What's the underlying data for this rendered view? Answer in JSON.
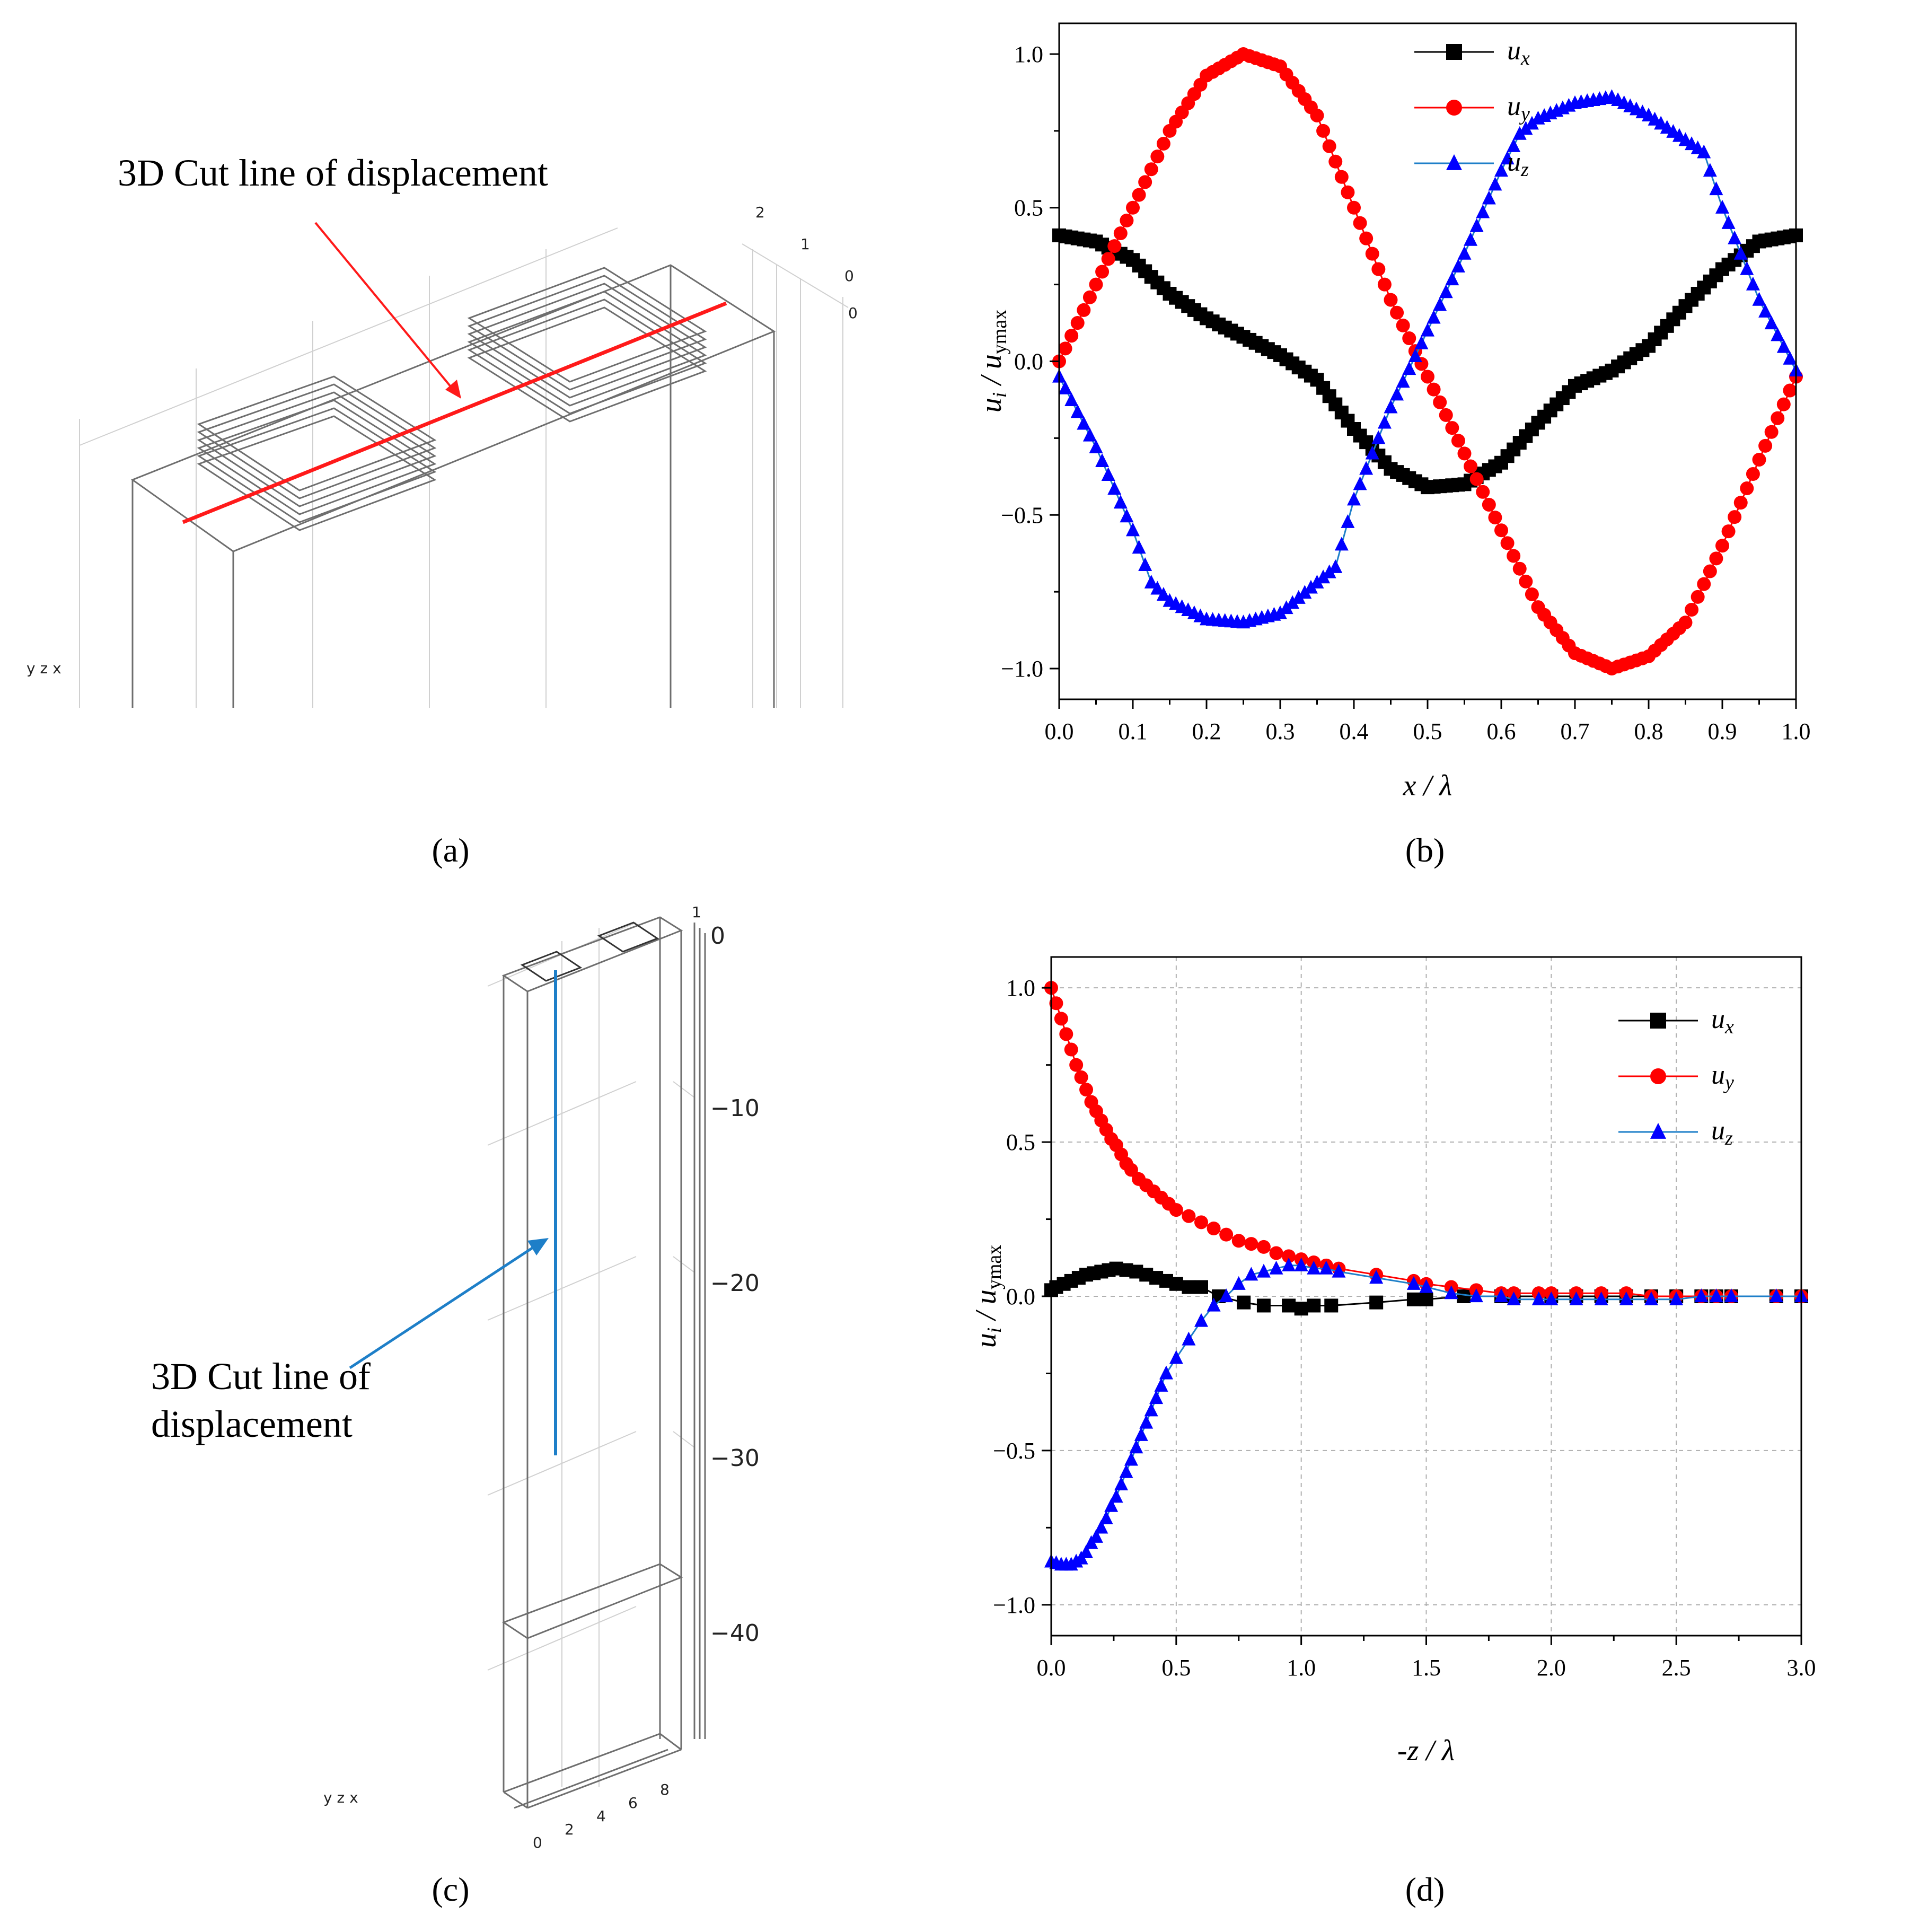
{
  "panel_a": {
    "label": "3D Cut line of displacement",
    "caption": "(a)",
    "axis_ticks": [
      "2",
      "1",
      "0",
      "0"
    ],
    "triad": "y z x",
    "line_color": "#ff1a1a"
  },
  "panel_c": {
    "label_line1": "3D Cut line of",
    "label_line2": "displacement",
    "caption": "(c)",
    "z_ticks": [
      "1",
      "0",
      "−10",
      "−20",
      "−30",
      "−40"
    ],
    "x_ticks": [
      "0",
      "2",
      "4",
      "6",
      "8"
    ],
    "triad": "y z x",
    "line_color": "#1e7fc8"
  },
  "captions": {
    "b": "(b)",
    "d": "(d)"
  },
  "chart_data": [
    {
      "type": "line",
      "panel": "b",
      "title": "",
      "xlabel": "x / λ",
      "ylabel": "u_i / u_ymax",
      "xlim": [
        0.0,
        1.0
      ],
      "ylim": [
        -1.1,
        1.1
      ],
      "xticks": [
        "0.0",
        "0.1",
        "0.2",
        "0.3",
        "0.4",
        "0.5",
        "0.6",
        "0.7",
        "0.8",
        "0.9",
        "1.0"
      ],
      "yticks": [
        "−1.0",
        "−0.5",
        "0.0",
        "0.5",
        "1.0"
      ],
      "grid": false,
      "legend_position": "top-center",
      "series": [
        {
          "name": "u_x",
          "sub": "x",
          "color": "#000000",
          "marker": "square",
          "npoints": 121,
          "x": [
            0,
            0.05,
            0.1,
            0.15,
            0.2,
            0.25,
            0.3,
            0.35,
            0.4,
            0.45,
            0.5,
            0.55,
            0.6,
            0.65,
            0.7,
            0.75,
            0.8,
            0.85,
            0.9,
            0.95,
            1.0
          ],
          "y": [
            0.41,
            0.39,
            0.33,
            0.22,
            0.14,
            0.08,
            0.02,
            -0.06,
            -0.22,
            -0.35,
            -0.41,
            -0.4,
            -0.33,
            -0.2,
            -0.08,
            -0.03,
            0.05,
            0.18,
            0.3,
            0.39,
            0.41
          ]
        },
        {
          "name": "u_y",
          "sub": "y",
          "color": "#ff0000",
          "marker": "circle",
          "npoints": 121,
          "x": [
            0,
            0.05,
            0.1,
            0.15,
            0.2,
            0.25,
            0.3,
            0.35,
            0.4,
            0.45,
            0.5,
            0.55,
            0.6,
            0.65,
            0.7,
            0.75,
            0.8,
            0.85,
            0.9,
            0.95,
            1.0
          ],
          "y": [
            0.0,
            0.25,
            0.5,
            0.75,
            0.93,
            1.0,
            0.96,
            0.8,
            0.5,
            0.2,
            -0.05,
            -0.3,
            -0.55,
            -0.8,
            -0.95,
            -1.0,
            -0.96,
            -0.85,
            -0.6,
            -0.32,
            -0.05
          ]
        },
        {
          "name": "u_z",
          "sub": "z",
          "color": "#0000ff",
          "marker": "triangle",
          "npoints": 121,
          "x": [
            0,
            0.05,
            0.1,
            0.125,
            0.15,
            0.2,
            0.25,
            0.3,
            0.35,
            0.375,
            0.4,
            0.45,
            0.5,
            0.55,
            0.6,
            0.625,
            0.65,
            0.7,
            0.75,
            0.8,
            0.85,
            0.875,
            0.9,
            0.95,
            1.0
          ],
          "y": [
            -0.05,
            -0.28,
            -0.55,
            -0.72,
            -0.78,
            -0.84,
            -0.85,
            -0.82,
            -0.72,
            -0.67,
            -0.45,
            -0.15,
            0.1,
            0.35,
            0.62,
            0.74,
            0.79,
            0.84,
            0.86,
            0.8,
            0.72,
            0.68,
            0.5,
            0.2,
            -0.03
          ]
        }
      ]
    },
    {
      "type": "line",
      "panel": "d",
      "title": "",
      "xlabel": "-z / λ",
      "ylabel": "u_i / u_ymax",
      "xlim": [
        0.0,
        3.0
      ],
      "ylim": [
        -1.1,
        1.1
      ],
      "xticks": [
        "0.0",
        "0.5",
        "1.0",
        "1.5",
        "2.0",
        "2.5",
        "3.0"
      ],
      "yticks": [
        "−1.0",
        "−0.5",
        "0.0",
        "0.5",
        "1.0"
      ],
      "grid": true,
      "legend_position": "top-right",
      "series": [
        {
          "name": "u_x",
          "sub": "x",
          "color": "#000000",
          "marker": "square",
          "x": [
            0.0,
            0.02,
            0.05,
            0.08,
            0.11,
            0.14,
            0.17,
            0.2,
            0.23,
            0.26,
            0.3,
            0.34,
            0.38,
            0.42,
            0.46,
            0.5,
            0.55,
            0.6,
            0.67,
            0.77,
            0.85,
            0.95,
            1.0,
            1.05,
            1.12,
            1.3,
            1.45,
            1.5,
            1.65,
            1.8,
            1.85,
            2.0,
            2.1,
            2.2,
            2.3,
            2.4,
            2.5,
            2.6,
            2.66,
            2.72,
            2.9,
            3.0
          ],
          "y": [
            0.02,
            0.03,
            0.04,
            0.05,
            0.06,
            0.07,
            0.075,
            0.08,
            0.085,
            0.09,
            0.085,
            0.08,
            0.07,
            0.06,
            0.05,
            0.04,
            0.03,
            0.03,
            0.0,
            -0.02,
            -0.03,
            -0.03,
            -0.04,
            -0.03,
            -0.03,
            -0.02,
            -0.01,
            -0.01,
            0.0,
            0.0,
            0.0,
            0.0,
            0.0,
            0.0,
            0.0,
            0.0,
            0.0,
            0.0,
            0.0,
            0.0,
            0.0,
            0.0
          ]
        },
        {
          "name": "u_y",
          "sub": "y",
          "color": "#ff0000",
          "marker": "circle",
          "x": [
            0.0,
            0.02,
            0.04,
            0.06,
            0.08,
            0.1,
            0.12,
            0.14,
            0.16,
            0.18,
            0.2,
            0.22,
            0.24,
            0.26,
            0.28,
            0.3,
            0.32,
            0.35,
            0.38,
            0.41,
            0.44,
            0.47,
            0.5,
            0.55,
            0.6,
            0.65,
            0.7,
            0.75,
            0.8,
            0.85,
            0.9,
            0.95,
            1.0,
            1.05,
            1.1,
            1.15,
            1.3,
            1.45,
            1.5,
            1.6,
            1.7,
            1.8,
            1.85,
            1.95,
            2.0,
            2.1,
            2.2,
            2.3,
            2.4,
            2.5,
            2.6,
            2.66,
            2.72,
            2.9,
            3.0
          ],
          "y": [
            1.0,
            0.95,
            0.9,
            0.85,
            0.8,
            0.75,
            0.71,
            0.67,
            0.63,
            0.6,
            0.57,
            0.54,
            0.51,
            0.49,
            0.46,
            0.43,
            0.41,
            0.38,
            0.36,
            0.34,
            0.32,
            0.3,
            0.28,
            0.26,
            0.24,
            0.22,
            0.2,
            0.18,
            0.17,
            0.16,
            0.14,
            0.13,
            0.12,
            0.11,
            0.1,
            0.09,
            0.07,
            0.05,
            0.04,
            0.03,
            0.02,
            0.01,
            0.01,
            0.01,
            0.01,
            0.01,
            0.01,
            0.01,
            0.0,
            0.0,
            0.0,
            0.0,
            0.0,
            0.0,
            0.0
          ]
        },
        {
          "name": "u_z",
          "sub": "z",
          "color": "#0000ff",
          "marker": "triangle",
          "x": [
            0.0,
            0.02,
            0.04,
            0.06,
            0.08,
            0.1,
            0.12,
            0.14,
            0.16,
            0.18,
            0.2,
            0.22,
            0.24,
            0.26,
            0.28,
            0.3,
            0.32,
            0.34,
            0.36,
            0.38,
            0.4,
            0.42,
            0.44,
            0.46,
            0.5,
            0.55,
            0.6,
            0.65,
            0.7,
            0.75,
            0.8,
            0.85,
            0.9,
            0.95,
            1.0,
            1.05,
            1.1,
            1.15,
            1.3,
            1.45,
            1.5,
            1.6,
            1.7,
            1.8,
            1.85,
            1.95,
            2.0,
            2.1,
            2.2,
            2.3,
            2.4,
            2.5,
            2.6,
            2.66,
            2.72,
            2.9,
            3.0
          ],
          "y": [
            -0.86,
            -0.865,
            -0.87,
            -0.87,
            -0.87,
            -0.86,
            -0.85,
            -0.83,
            -0.8,
            -0.78,
            -0.75,
            -0.72,
            -0.68,
            -0.65,
            -0.61,
            -0.57,
            -0.53,
            -0.49,
            -0.45,
            -0.41,
            -0.37,
            -0.33,
            -0.29,
            -0.25,
            -0.2,
            -0.14,
            -0.08,
            -0.03,
            0.0,
            0.04,
            0.07,
            0.08,
            0.09,
            0.1,
            0.1,
            0.09,
            0.09,
            0.08,
            0.06,
            0.04,
            0.03,
            0.01,
            0.0,
            0.0,
            -0.01,
            -0.01,
            -0.01,
            -0.01,
            -0.01,
            -0.01,
            -0.01,
            -0.01,
            0.0,
            0.0,
            0.0,
            0.0,
            0.0
          ]
        }
      ]
    }
  ]
}
